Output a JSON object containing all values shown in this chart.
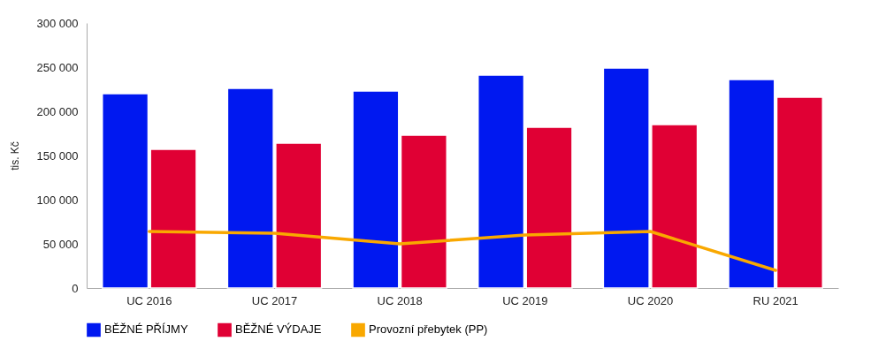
{
  "chart_data": {
    "type": "bar",
    "ylabel": "tis. Kč",
    "categories": [
      "UC 2016",
      "UC 2017",
      "UC 2018",
      "UC 2019",
      "UC 2020",
      "RU 2021"
    ],
    "series": [
      {
        "name": "BĚŽNÉ PŘÍJMY",
        "color": "#0018f0",
        "values": [
          220000,
          226000,
          223000,
          241000,
          249000,
          236000
        ]
      },
      {
        "name": "BĚŽNÉ VÝDAJE",
        "color": "#e00034",
        "values": [
          157000,
          164000,
          173000,
          182000,
          185000,
          216000
        ]
      },
      {
        "name": "Provozní přebytek (PP)",
        "type": "line",
        "color": "#f9a800",
        "values": [
          64000,
          62000,
          50000,
          60000,
          64000,
          20000
        ]
      }
    ],
    "ylim": [
      0,
      300000
    ],
    "yticks": [
      0,
      50000,
      100000,
      150000,
      200000,
      250000,
      300000
    ],
    "grid": false,
    "legend": "bottom"
  }
}
